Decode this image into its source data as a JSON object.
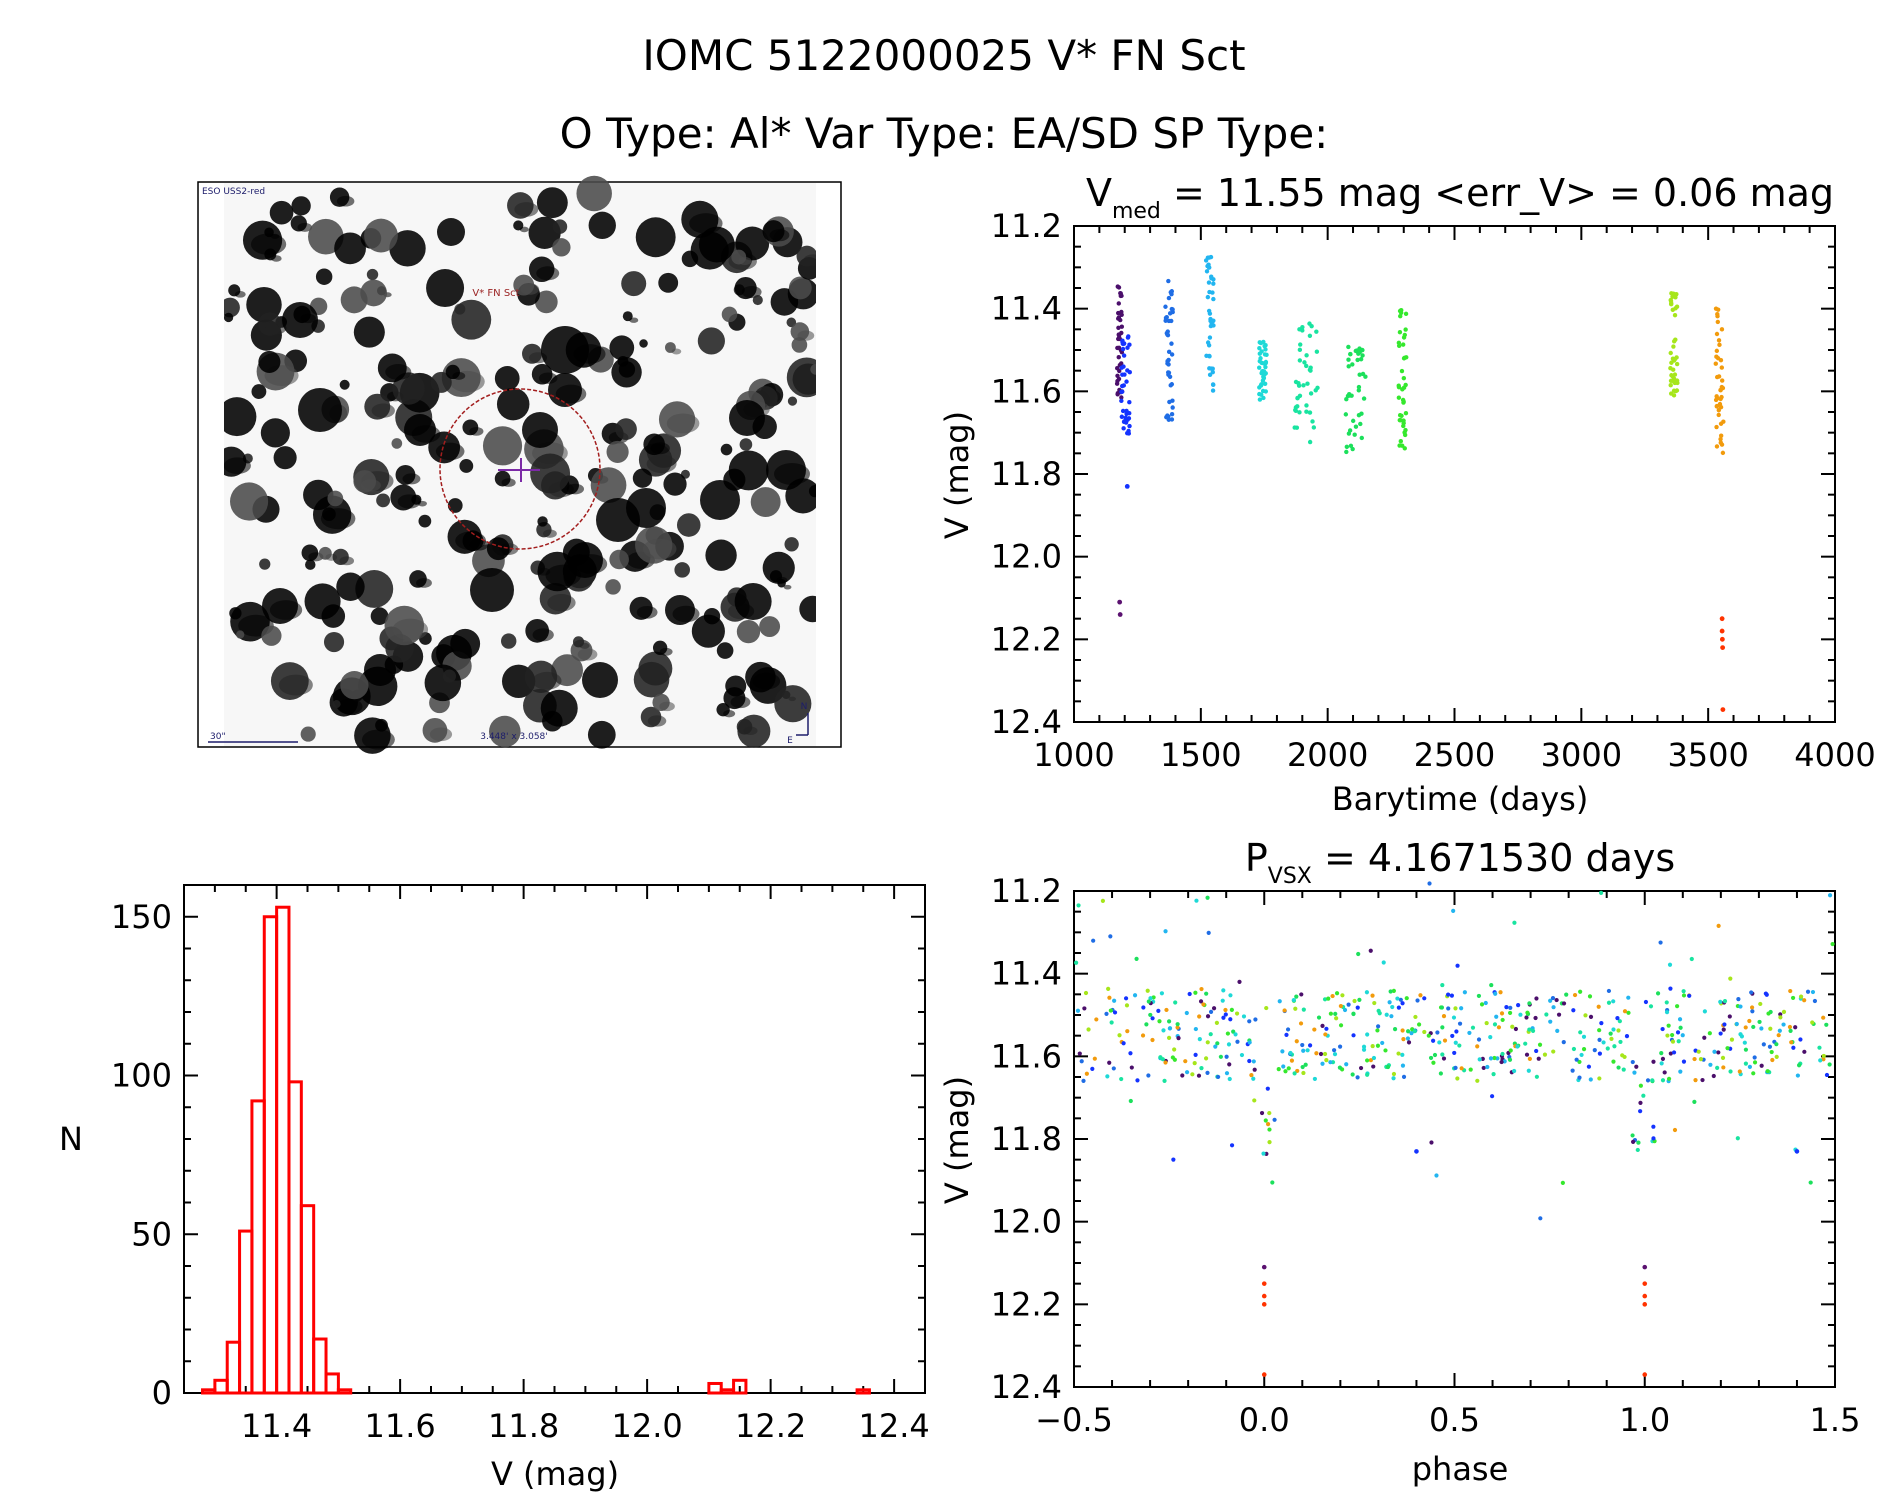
{
  "header": {
    "id_title": "IOMC 5122000025   V* FN Sct",
    "type_line": "O Type: Al*  Var Type: EA/SD  SP Type:"
  },
  "finder": {
    "survey_label": "ESO USS2-red",
    "target_label": "V* FN Sct",
    "scale_label": "30\"",
    "field_label": "3.448' x 3.058'",
    "north_label": "N",
    "east_label": "E"
  },
  "light_curve": {
    "title_main": "V",
    "title_subscript": "med",
    "title_rest": " = 11.55 mag <err_V> = 0.06 mag"
  },
  "phase_curve": {
    "title_main": "P",
    "title_subscript": "VSX",
    "title_rest": " = 4.1671530 days"
  },
  "chart_data": [
    {
      "type": "scatter",
      "name": "light-curve",
      "title": "V_med = 11.55 mag <err_V> = 0.06 mag",
      "xlabel": "Barytime (days)",
      "ylabel": "V (mag)",
      "xlim": [
        1000,
        4000
      ],
      "ylim": [
        11.2,
        12.4
      ],
      "y_inverted": true,
      "x_ticks": [
        1000,
        1500,
        2000,
        2500,
        3000,
        3500,
        4000
      ],
      "y_ticks": [
        11.2,
        11.4,
        11.6,
        11.8,
        12.0,
        12.2,
        12.4
      ],
      "groups": [
        {
          "color": "#4b0f6b",
          "x_range": [
            1170,
            1190
          ],
          "y_range": [
            11.34,
            11.62
          ]
        },
        {
          "color": "#1433ff",
          "x_range": [
            1185,
            1220
          ],
          "y_range": [
            11.46,
            11.72
          ]
        },
        {
          "color": "#1f6de5",
          "x_range": [
            1360,
            1390
          ],
          "y_range": [
            11.33,
            11.67
          ]
        },
        {
          "color": "#22b5f0",
          "x_range": [
            1520,
            1550
          ],
          "y_range": [
            11.27,
            11.6
          ]
        },
        {
          "color": "#1ed9d7",
          "x_range": [
            1730,
            1760
          ],
          "y_range": [
            11.48,
            11.62
          ]
        },
        {
          "color": "#19e4a0",
          "x_range": [
            1870,
            1960
          ],
          "y_range": [
            11.43,
            11.73
          ]
        },
        {
          "color": "#1ce05b",
          "x_range": [
            2070,
            2150
          ],
          "y_range": [
            11.49,
            11.75
          ]
        },
        {
          "color": "#35e82d",
          "x_range": [
            2280,
            2310
          ],
          "y_range": [
            11.4,
            11.75
          ]
        },
        {
          "color": "#a6e61b",
          "x_range": [
            3350,
            3380
          ],
          "y_range": [
            11.36,
            11.64
          ]
        },
        {
          "color": "#f29b0c",
          "x_range": [
            3530,
            3560
          ],
          "y_range": [
            11.4,
            11.76
          ]
        }
      ],
      "outliers": [
        {
          "x": 1180,
          "y": 12.11,
          "color": "#5b1270"
        },
        {
          "x": 1182,
          "y": 12.14,
          "color": "#5b1270"
        },
        {
          "x": 1210,
          "y": 11.83,
          "color": "#1433ff"
        },
        {
          "x": 3555,
          "y": 12.15,
          "color": "#ff3300"
        },
        {
          "x": 3555,
          "y": 12.18,
          "color": "#ff3300"
        },
        {
          "x": 3556,
          "y": 12.2,
          "color": "#ff3300"
        },
        {
          "x": 3557,
          "y": 12.22,
          "color": "#ff3300"
        },
        {
          "x": 3558,
          "y": 12.37,
          "color": "#ff3300"
        }
      ]
    },
    {
      "type": "bar",
      "name": "histogram",
      "xlabel": "V (mag)",
      "ylabel": "N",
      "xlim": [
        11.25,
        12.45
      ],
      "ylim": [
        0,
        160
      ],
      "x_ticks": [
        11.4,
        11.6,
        11.8,
        12.0,
        12.2,
        12.4
      ],
      "y_ticks": [
        0,
        50,
        100,
        150
      ],
      "bins": [
        {
          "start": 11.28,
          "end": 11.3,
          "value": 1
        },
        {
          "start": 11.3,
          "end": 11.32,
          "value": 4
        },
        {
          "start": 11.32,
          "end": 11.34,
          "value": 16
        },
        {
          "start": 11.34,
          "end": 11.36,
          "value": 51
        },
        {
          "start": 11.36,
          "end": 11.38,
          "value": 92
        },
        {
          "start": 11.38,
          "end": 11.4,
          "value": 150
        },
        {
          "start": 11.4,
          "end": 11.42,
          "value": 153
        },
        {
          "start": 11.42,
          "end": 11.44,
          "value": 98
        },
        {
          "start": 11.44,
          "end": 11.46,
          "value": 59
        },
        {
          "start": 11.46,
          "end": 11.48,
          "value": 17
        },
        {
          "start": 11.48,
          "end": 11.5,
          "value": 6
        },
        {
          "start": 11.5,
          "end": 11.52,
          "value": 1
        },
        {
          "start": 11.52,
          "end": 11.54,
          "value": 0
        },
        {
          "start": 11.54,
          "end": 11.56,
          "value": 0
        },
        {
          "start": 11.56,
          "end": 11.58,
          "value": 0
        },
        {
          "start": 11.58,
          "end": 11.6,
          "value": 0
        },
        {
          "start": 11.6,
          "end": 11.62,
          "value": 0
        },
        {
          "start": 11.62,
          "end": 11.64,
          "value": 0
        },
        {
          "start": 11.64,
          "end": 11.66,
          "value": 0
        },
        {
          "start": 11.66,
          "end": 11.68,
          "value": 0
        },
        {
          "start": 11.68,
          "end": 11.7,
          "value": 0
        },
        {
          "start": 11.7,
          "end": 11.72,
          "value": 0
        },
        {
          "start": 11.72,
          "end": 11.74,
          "value": 0
        },
        {
          "start": 11.74,
          "end": 11.76,
          "value": 0
        },
        {
          "start": 11.76,
          "end": 11.78,
          "value": 0
        },
        {
          "start": 11.78,
          "end": 11.8,
          "value": 0
        },
        {
          "start": 11.8,
          "end": 11.82,
          "value": 0
        },
        {
          "start": 11.82,
          "end": 11.84,
          "value": 0
        },
        {
          "start": 11.84,
          "end": 11.86,
          "value": 0
        },
        {
          "start": 11.86,
          "end": 11.88,
          "value": 0
        },
        {
          "start": 11.88,
          "end": 11.9,
          "value": 0
        },
        {
          "start": 11.9,
          "end": 11.92,
          "value": 0
        },
        {
          "start": 11.92,
          "end": 11.94,
          "value": 0
        },
        {
          "start": 11.94,
          "end": 11.96,
          "value": 0
        },
        {
          "start": 11.96,
          "end": 11.98,
          "value": 0
        },
        {
          "start": 11.98,
          "end": 12.0,
          "value": 0
        },
        {
          "start": 12.0,
          "end": 12.02,
          "value": 0
        },
        {
          "start": 12.02,
          "end": 12.04,
          "value": 0
        },
        {
          "start": 12.04,
          "end": 12.06,
          "value": 0
        },
        {
          "start": 12.06,
          "end": 12.08,
          "value": 0
        },
        {
          "start": 12.08,
          "end": 12.1,
          "value": 0
        },
        {
          "start": 12.1,
          "end": 12.12,
          "value": 3
        },
        {
          "start": 12.12,
          "end": 12.14,
          "value": 1
        },
        {
          "start": 12.14,
          "end": 12.16,
          "value": 4
        },
        {
          "start": 12.16,
          "end": 12.18,
          "value": 0
        },
        {
          "start": 12.18,
          "end": 12.2,
          "value": 0
        },
        {
          "start": 12.2,
          "end": 12.22,
          "value": 0
        },
        {
          "start": 12.22,
          "end": 12.24,
          "value": 0
        },
        {
          "start": 12.24,
          "end": 12.26,
          "value": 0
        },
        {
          "start": 12.26,
          "end": 12.28,
          "value": 0
        },
        {
          "start": 12.28,
          "end": 12.3,
          "value": 0
        },
        {
          "start": 12.3,
          "end": 12.32,
          "value": 0
        },
        {
          "start": 12.32,
          "end": 12.34,
          "value": 0
        },
        {
          "start": 12.34,
          "end": 12.36,
          "value": 1
        },
        {
          "start": 12.36,
          "end": 12.38,
          "value": 0
        }
      ]
    },
    {
      "type": "scatter",
      "name": "phase-curve",
      "title": "P_VSX = 4.1671530 days",
      "xlabel": "phase",
      "ylabel": "V (mag)",
      "xlim": [
        -0.5,
        1.5
      ],
      "ylim": [
        11.2,
        12.4
      ],
      "y_inverted": true,
      "x_ticks": [
        -0.5,
        0.0,
        0.5,
        1.0,
        1.5
      ],
      "y_ticks": [
        11.2,
        11.4,
        11.6,
        11.8,
        12.0,
        12.2,
        12.4
      ],
      "period": 4.167153,
      "eclipse_phase": 0.0,
      "eclipse_depth": 12.2,
      "base_level": 11.55
    }
  ]
}
